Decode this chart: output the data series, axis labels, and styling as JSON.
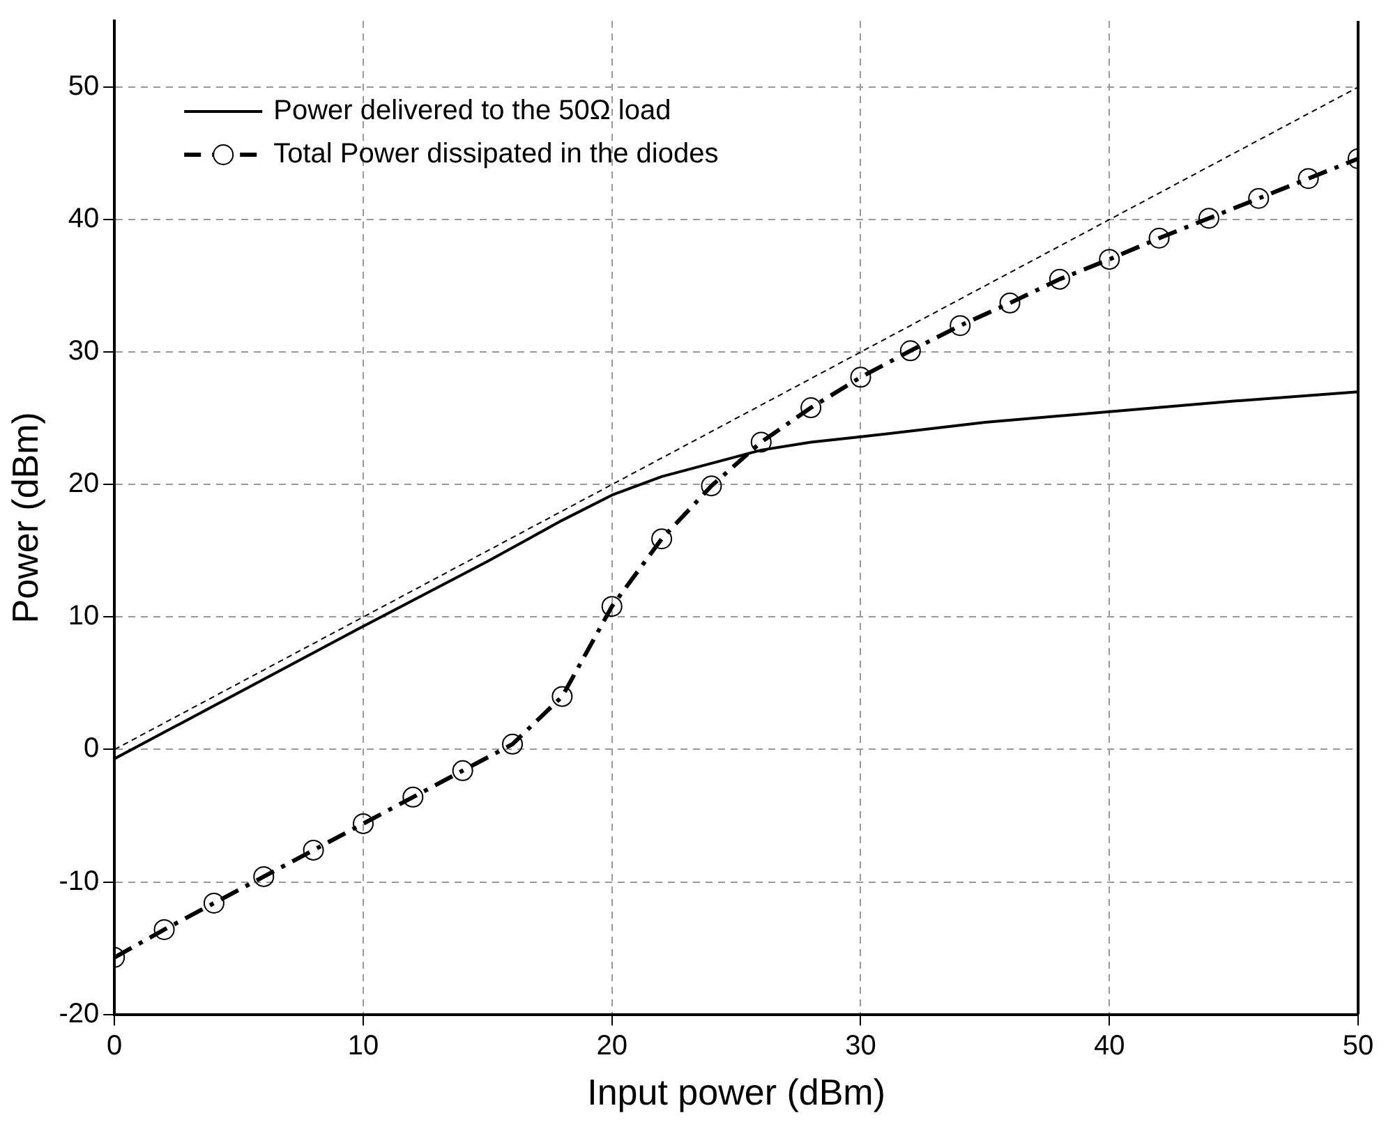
{
  "chart_data": {
    "type": "line",
    "xlabel": "Input power (dBm)",
    "ylabel": "Power (dBm)",
    "xlim": [
      0,
      50
    ],
    "ylim": [
      -20,
      55
    ],
    "xticks": [
      0,
      10,
      20,
      30,
      40,
      50
    ],
    "yticks": [
      -20,
      -10,
      0,
      10,
      20,
      30,
      40,
      50
    ],
    "grid": true,
    "legend": "top left",
    "series": [
      {
        "name": "Power delivered to the 50Ω load",
        "color": "#000000",
        "line_style": "solid",
        "marker": "none",
        "x": [
          0,
          5,
          10,
          15,
          18,
          20,
          22,
          24,
          26,
          28,
          30,
          35,
          40,
          45,
          50
        ],
        "values": [
          -0.7,
          4.3,
          9.3,
          14.2,
          17.3,
          19.2,
          20.6,
          21.6,
          22.6,
          23.2,
          23.6,
          24.7,
          25.5,
          26.3,
          27.0
        ]
      },
      {
        "name": "Total Power dissipated in the diodes",
        "color": "#000000",
        "line_style": "dashed",
        "marker": "circle",
        "x": [
          0,
          2,
          4,
          6,
          8,
          10,
          12,
          14,
          16,
          18,
          20,
          22,
          24,
          26,
          28,
          30,
          32,
          34,
          36,
          38,
          40,
          42,
          44,
          46,
          48,
          50
        ],
        "values": [
          -15.7,
          -13.6,
          -11.6,
          -9.6,
          -7.6,
          -5.6,
          -3.6,
          -1.6,
          0.4,
          4.0,
          10.8,
          15.9,
          19.9,
          23.2,
          25.8,
          28.1,
          30.1,
          32.0,
          33.7,
          35.5,
          37.0,
          38.6,
          40.1,
          41.6,
          43.1,
          44.6
        ]
      },
      {
        "color": "#000000",
        "line_style": "dotted",
        "marker": "none",
        "x": [
          0,
          50
        ],
        "values": [
          0,
          50
        ]
      }
    ]
  }
}
